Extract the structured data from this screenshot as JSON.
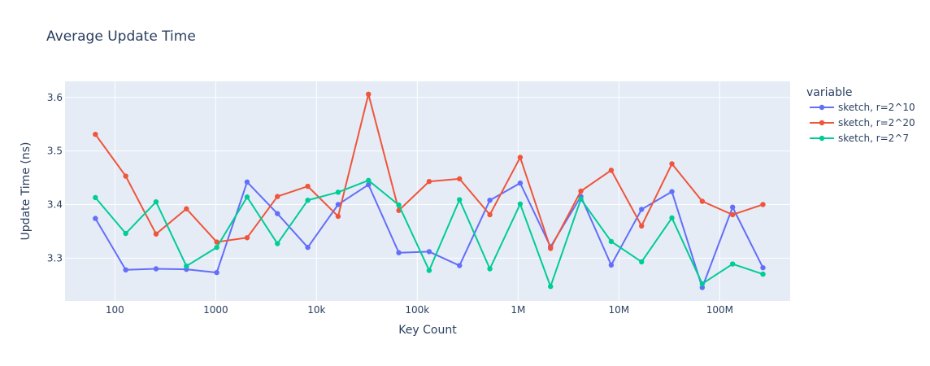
{
  "chart_data": {
    "type": "line",
    "title": "Average Update Time",
    "xlabel": "Key Count",
    "ylabel": "Update Time (ns)",
    "x_scale": "log",
    "xlim": [
      32,
      500000000
    ],
    "ylim": [
      3.22,
      3.63
    ],
    "x_ticks": [
      {
        "value": 100,
        "label": "100"
      },
      {
        "value": 1000,
        "label": "1000"
      },
      {
        "value": 10000,
        "label": "10k"
      },
      {
        "value": 100000,
        "label": "100k"
      },
      {
        "value": 1000000,
        "label": "1M"
      },
      {
        "value": 10000000,
        "label": "10M"
      },
      {
        "value": 100000000,
        "label": "100M"
      }
    ],
    "y_ticks": [
      {
        "value": 3.3,
        "label": "3.3"
      },
      {
        "value": 3.4,
        "label": "3.4"
      },
      {
        "value": 3.5,
        "label": "3.5"
      },
      {
        "value": 3.6,
        "label": "3.6"
      }
    ],
    "grid": true,
    "legend": {
      "title": "variable",
      "placement": "right"
    },
    "x": [
      64,
      128,
      256,
      512,
      1024,
      2048,
      4096,
      8192,
      16384,
      32768,
      65536,
      131072,
      262144,
      524288,
      1048576,
      2097152,
      4194304,
      8388608,
      16777216,
      33554432,
      67108864,
      134217728,
      268435456
    ],
    "series": [
      {
        "name": "sketch, r=2^10",
        "color": "#636efa",
        "values": [
          3.374,
          3.278,
          3.28,
          3.279,
          3.273,
          3.442,
          3.383,
          3.32,
          3.4,
          3.437,
          3.31,
          3.312,
          3.286,
          3.408,
          3.44,
          3.321,
          3.415,
          3.287,
          3.391,
          3.424,
          3.245,
          3.395,
          3.282
        ]
      },
      {
        "name": "sketch, r=2^20",
        "color": "#ef553b",
        "values": [
          3.531,
          3.453,
          3.345,
          3.392,
          3.33,
          3.338,
          3.415,
          3.434,
          3.378,
          3.606,
          3.389,
          3.443,
          3.448,
          3.381,
          3.488,
          3.318,
          3.425,
          3.464,
          3.36,
          3.476,
          3.406,
          3.381,
          3.4
        ]
      },
      {
        "name": "sketch, r=2^7",
        "color": "#00cc96",
        "values": [
          3.413,
          3.346,
          3.405,
          3.285,
          3.32,
          3.414,
          3.327,
          3.408,
          3.423,
          3.445,
          3.399,
          3.277,
          3.409,
          3.28,
          3.401,
          3.247,
          3.41,
          3.331,
          3.293,
          3.375,
          3.252,
          3.289,
          3.27
        ]
      }
    ]
  }
}
